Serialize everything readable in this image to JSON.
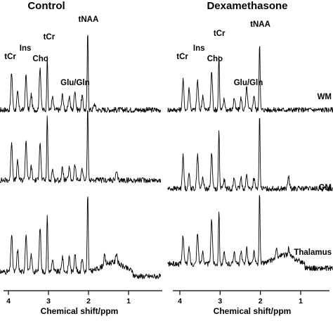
{
  "chart_data": [
    {
      "type": "line",
      "title": "Control",
      "xlabel": "Chemical shift/ppm",
      "xlim": [
        4.3,
        0.2
      ],
      "x_reversed": true,
      "x_ticks": [
        4,
        3,
        2,
        1
      ],
      "x_tick_labels": [
        "4",
        "3",
        "2",
        "1"
      ],
      "peak_labels": [
        {
          "text": "tCr",
          "ppm": 3.92
        },
        {
          "text": "Ins",
          "ppm": 3.56
        },
        {
          "text": "Cho",
          "ppm": 3.2
        },
        {
          "text": "tCr",
          "ppm": 3.02
        },
        {
          "text": "Glu/Gln",
          "ppm": 2.3
        },
        {
          "text": "tNAA",
          "ppm": 2.02
        }
      ],
      "series": [
        {
          "region": "WM",
          "peaks": [
            {
              "ppm": 3.92,
              "height": 0.48
            },
            {
              "ppm": 3.77,
              "height": 0.22
            },
            {
              "ppm": 3.56,
              "height": 0.45
            },
            {
              "ppm": 3.43,
              "height": 0.2
            },
            {
              "ppm": 3.21,
              "height": 0.56
            },
            {
              "ppm": 3.03,
              "height": 0.72
            },
            {
              "ppm": 2.9,
              "height": 0.16
            },
            {
              "ppm": 2.65,
              "height": 0.2
            },
            {
              "ppm": 2.48,
              "height": 0.18
            },
            {
              "ppm": 2.34,
              "height": 0.26
            },
            {
              "ppm": 2.16,
              "height": 0.18
            },
            {
              "ppm": 2.02,
              "height": 1.0
            },
            {
              "ppm": 1.85,
              "height": 0.08
            }
          ]
        },
        {
          "region": "GM",
          "peaks": [
            {
              "ppm": 3.92,
              "height": 0.5
            },
            {
              "ppm": 3.77,
              "height": 0.24
            },
            {
              "ppm": 3.56,
              "height": 0.52
            },
            {
              "ppm": 3.43,
              "height": 0.18
            },
            {
              "ppm": 3.21,
              "height": 0.5
            },
            {
              "ppm": 3.03,
              "height": 0.86
            },
            {
              "ppm": 2.9,
              "height": 0.14
            },
            {
              "ppm": 2.65,
              "height": 0.16
            },
            {
              "ppm": 2.48,
              "height": 0.16
            },
            {
              "ppm": 2.34,
              "height": 0.2
            },
            {
              "ppm": 2.16,
              "height": 0.16
            },
            {
              "ppm": 2.02,
              "height": 0.96
            },
            {
              "ppm": 1.3,
              "height": 0.1
            }
          ]
        },
        {
          "region": "Thalamus",
          "peaks": [
            {
              "ppm": 3.92,
              "height": 0.48
            },
            {
              "ppm": 3.77,
              "height": 0.28
            },
            {
              "ppm": 3.56,
              "height": 0.5
            },
            {
              "ppm": 3.43,
              "height": 0.22
            },
            {
              "ppm": 3.21,
              "height": 0.58
            },
            {
              "ppm": 3.03,
              "height": 0.76
            },
            {
              "ppm": 2.9,
              "height": 0.16
            },
            {
              "ppm": 2.65,
              "height": 0.2
            },
            {
              "ppm": 2.48,
              "height": 0.2
            },
            {
              "ppm": 2.34,
              "height": 0.24
            },
            {
              "ppm": 2.16,
              "height": 0.18
            },
            {
              "ppm": 2.02,
              "height": 1.0
            },
            {
              "ppm": 1.6,
              "height": 0.12
            },
            {
              "ppm": 1.3,
              "height": 0.14
            }
          ]
        }
      ]
    },
    {
      "type": "line",
      "title": "Dexamethasone",
      "xlabel": "Chemical shift/ppm",
      "xlim": [
        4.3,
        0.2
      ],
      "x_reversed": true,
      "x_ticks": [
        4,
        3,
        2,
        1
      ],
      "x_tick_labels": [
        "4",
        "3",
        "2",
        "1"
      ],
      "peak_labels": [
        {
          "text": "tCr",
          "ppm": 3.92
        },
        {
          "text": "Ins",
          "ppm": 3.56
        },
        {
          "text": "Cho",
          "ppm": 3.2
        },
        {
          "text": "tCr",
          "ppm": 3.02
        },
        {
          "text": "Glu/Gln",
          "ppm": 2.3
        },
        {
          "text": "tNAA",
          "ppm": 2.02
        }
      ],
      "series": [
        {
          "region": "WM",
          "peaks": [
            {
              "ppm": 3.92,
              "height": 0.4
            },
            {
              "ppm": 3.77,
              "height": 0.3
            },
            {
              "ppm": 3.56,
              "height": 0.4
            },
            {
              "ppm": 3.43,
              "height": 0.2
            },
            {
              "ppm": 3.21,
              "height": 0.52
            },
            {
              "ppm": 3.03,
              "height": 0.76
            },
            {
              "ppm": 2.9,
              "height": 0.14
            },
            {
              "ppm": 2.65,
              "height": 0.16
            },
            {
              "ppm": 2.48,
              "height": 0.16
            },
            {
              "ppm": 2.34,
              "height": 0.3
            },
            {
              "ppm": 2.16,
              "height": 0.2
            },
            {
              "ppm": 2.02,
              "height": 0.94
            }
          ]
        },
        {
          "region": "GM",
          "peaks": [
            {
              "ppm": 3.92,
              "height": 0.44
            },
            {
              "ppm": 3.77,
              "height": 0.2
            },
            {
              "ppm": 3.56,
              "height": 0.48
            },
            {
              "ppm": 3.43,
              "height": 0.16
            },
            {
              "ppm": 3.21,
              "height": 0.48
            },
            {
              "ppm": 3.03,
              "height": 0.82
            },
            {
              "ppm": 2.9,
              "height": 0.12
            },
            {
              "ppm": 2.65,
              "height": 0.14
            },
            {
              "ppm": 2.48,
              "height": 0.14
            },
            {
              "ppm": 2.34,
              "height": 0.18
            },
            {
              "ppm": 2.16,
              "height": 0.14
            },
            {
              "ppm": 2.02,
              "height": 1.0
            },
            {
              "ppm": 1.3,
              "height": 0.16
            }
          ]
        },
        {
          "region": "Thalamus",
          "peaks": [
            {
              "ppm": 3.92,
              "height": 0.4
            },
            {
              "ppm": 3.77,
              "height": 0.22
            },
            {
              "ppm": 3.56,
              "height": 0.42
            },
            {
              "ppm": 3.43,
              "height": 0.18
            },
            {
              "ppm": 3.21,
              "height": 0.6
            },
            {
              "ppm": 3.03,
              "height": 0.74
            },
            {
              "ppm": 2.9,
              "height": 0.14
            },
            {
              "ppm": 2.65,
              "height": 0.18
            },
            {
              "ppm": 2.48,
              "height": 0.16
            },
            {
              "ppm": 2.34,
              "height": 0.22
            },
            {
              "ppm": 2.16,
              "height": 0.16
            },
            {
              "ppm": 2.02,
              "height": 0.98
            },
            {
              "ppm": 1.6,
              "height": 0.1
            },
            {
              "ppm": 1.3,
              "height": 0.1
            }
          ]
        }
      ]
    }
  ]
}
